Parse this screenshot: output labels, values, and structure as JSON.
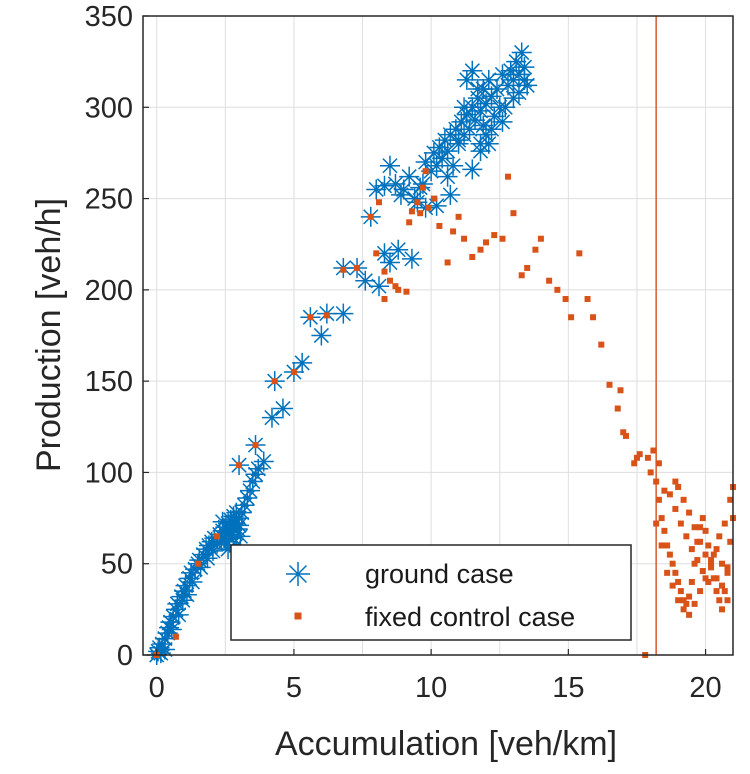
{
  "chart_data": {
    "type": "scatter",
    "title": "",
    "xlabel": "Accumulation [veh/km]",
    "ylabel": "Production [veh/h]",
    "xlim": [
      -0.5,
      21
    ],
    "ylim": [
      0,
      350
    ],
    "xticks": [
      0,
      5,
      10,
      15,
      20
    ],
    "yticks": [
      0,
      50,
      100,
      150,
      200,
      250,
      300,
      350
    ],
    "grid": true,
    "legend_position": "bottom-right",
    "reference_line": {
      "x": 18.2,
      "color": "#d9653b"
    },
    "series": [
      {
        "name": "ground case",
        "marker": "asterisk",
        "color": "#0072bd",
        "points": [
          [
            0.0,
            0
          ],
          [
            0.05,
            2
          ],
          [
            0.1,
            4
          ],
          [
            0.15,
            1
          ],
          [
            0.2,
            6
          ],
          [
            0.3,
            9
          ],
          [
            0.3,
            3
          ],
          [
            0.4,
            12
          ],
          [
            0.45,
            15
          ],
          [
            0.5,
            18
          ],
          [
            0.55,
            14
          ],
          [
            0.6,
            21
          ],
          [
            0.7,
            25
          ],
          [
            0.75,
            28
          ],
          [
            0.8,
            22
          ],
          [
            0.9,
            32
          ],
          [
            0.95,
            30
          ],
          [
            1.0,
            35
          ],
          [
            1.05,
            38
          ],
          [
            1.1,
            33
          ],
          [
            1.2,
            42
          ],
          [
            1.25,
            45
          ],
          [
            1.3,
            40
          ],
          [
            1.4,
            47
          ],
          [
            1.5,
            50
          ],
          [
            1.55,
            52
          ],
          [
            1.6,
            48
          ],
          [
            1.7,
            55
          ],
          [
            1.8,
            58
          ],
          [
            1.85,
            53
          ],
          [
            1.9,
            60
          ],
          [
            2.0,
            62
          ],
          [
            2.05,
            57
          ],
          [
            2.1,
            64
          ],
          [
            2.2,
            61
          ],
          [
            2.3,
            66
          ],
          [
            2.35,
            63
          ],
          [
            2.4,
            68
          ],
          [
            2.45,
            64
          ],
          [
            2.5,
            70
          ],
          [
            2.55,
            66
          ],
          [
            2.6,
            72
          ],
          [
            2.65,
            68
          ],
          [
            2.7,
            74
          ],
          [
            2.75,
            70
          ],
          [
            2.8,
            76
          ],
          [
            2.85,
            72
          ],
          [
            2.9,
            78
          ],
          [
            2.95,
            69
          ],
          [
            3.0,
            71
          ],
          [
            3.05,
            65
          ],
          [
            2.5,
            62
          ],
          [
            2.6,
            58
          ],
          [
            2.7,
            67
          ],
          [
            2.8,
            64
          ],
          [
            2.9,
            60
          ],
          [
            3.0,
            75
          ],
          [
            2.4,
            73
          ],
          [
            3.1,
            78
          ],
          [
            3.2,
            82
          ],
          [
            3.3,
            86
          ],
          [
            3.4,
            90
          ],
          [
            3.5,
            95
          ],
          [
            3.6,
            99
          ],
          [
            3.7,
            102
          ],
          [
            3.9,
            106
          ],
          [
            3.6,
            115
          ],
          [
            3.0,
            104
          ],
          [
            4.2,
            130
          ],
          [
            4.3,
            150
          ],
          [
            4.6,
            135
          ],
          [
            5.0,
            155
          ],
          [
            5.3,
            160
          ],
          [
            5.6,
            185
          ],
          [
            6.0,
            175
          ],
          [
            6.2,
            187
          ],
          [
            6.8,
            187
          ],
          [
            6.8,
            212
          ],
          [
            7.3,
            212
          ],
          [
            7.6,
            205
          ],
          [
            7.8,
            240
          ],
          [
            8.1,
            202
          ],
          [
            8.3,
            220
          ],
          [
            8.5,
            215
          ],
          [
            8.0,
            255
          ],
          [
            8.3,
            257
          ],
          [
            8.5,
            268
          ],
          [
            8.7,
            258
          ],
          [
            8.8,
            222
          ],
          [
            8.9,
            252
          ],
          [
            9.0,
            255
          ],
          [
            9.2,
            262
          ],
          [
            9.3,
            217
          ],
          [
            9.4,
            250
          ],
          [
            9.6,
            256
          ],
          [
            9.7,
            258
          ],
          [
            9.8,
            270
          ],
          [
            10.0,
            265
          ],
          [
            10.1,
            275
          ],
          [
            10.2,
            268
          ],
          [
            10.3,
            278
          ],
          [
            10.4,
            272
          ],
          [
            10.5,
            282
          ],
          [
            10.6,
            276
          ],
          [
            10.7,
            285
          ],
          [
            10.8,
            268
          ],
          [
            10.9,
            288
          ],
          [
            11.0,
            280
          ],
          [
            11.1,
            292
          ],
          [
            11.2,
            285
          ],
          [
            11.3,
            296
          ],
          [
            11.4,
            288
          ],
          [
            11.5,
            300
          ],
          [
            11.6,
            293
          ],
          [
            11.7,
            305
          ],
          [
            11.8,
            298
          ],
          [
            11.9,
            310
          ],
          [
            12.0,
            302
          ],
          [
            12.1,
            315
          ],
          [
            12.2,
            306
          ],
          [
            11.3,
            315
          ],
          [
            11.5,
            320
          ],
          [
            11.7,
            310
          ],
          [
            11.9,
            290
          ],
          [
            12.0,
            285
          ],
          [
            12.1,
            280
          ],
          [
            12.3,
            295
          ],
          [
            12.4,
            310
          ],
          [
            12.5,
            300
          ],
          [
            12.6,
            318
          ],
          [
            12.8,
            312
          ],
          [
            12.9,
            320
          ],
          [
            13.0,
            315
          ],
          [
            13.1,
            325
          ],
          [
            13.2,
            318
          ],
          [
            13.3,
            330
          ],
          [
            13.4,
            322
          ],
          [
            13.5,
            312
          ],
          [
            13.2,
            308
          ],
          [
            13.0,
            305
          ],
          [
            12.6,
            292
          ],
          [
            12.2,
            288
          ],
          [
            11.8,
            276
          ],
          [
            11.5,
            266
          ],
          [
            11.0,
            282
          ],
          [
            10.6,
            262
          ],
          [
            10.2,
            246
          ],
          [
            9.8,
            245
          ],
          [
            9.5,
            248
          ],
          [
            10.7,
            252
          ],
          [
            11.2,
            300
          ],
          [
            11.8,
            280
          ],
          [
            12.7,
            300
          ],
          [
            13.4,
            315
          ]
        ]
      },
      {
        "name": "fixed control case",
        "marker": "square",
        "color": "#d95319",
        "points": [
          [
            0.0,
            0
          ],
          [
            0.7,
            10
          ],
          [
            1.5,
            50
          ],
          [
            2.2,
            65
          ],
          [
            3.0,
            104
          ],
          [
            3.6,
            115
          ],
          [
            4.3,
            150
          ],
          [
            5.0,
            155
          ],
          [
            5.6,
            185
          ],
          [
            6.2,
            186
          ],
          [
            6.8,
            211
          ],
          [
            7.3,
            212
          ],
          [
            7.8,
            240
          ],
          [
            8.0,
            220
          ],
          [
            8.1,
            248
          ],
          [
            8.3,
            210
          ],
          [
            8.5,
            205
          ],
          [
            8.7,
            202
          ],
          [
            8.3,
            195
          ],
          [
            8.8,
            200
          ],
          [
            9.1,
            199
          ],
          [
            9.3,
            243
          ],
          [
            9.5,
            248
          ],
          [
            9.7,
            256
          ],
          [
            9.8,
            265
          ],
          [
            9.2,
            237
          ],
          [
            9.6,
            242
          ],
          [
            9.9,
            245
          ],
          [
            10.1,
            250
          ],
          [
            10.3,
            235
          ],
          [
            10.6,
            215
          ],
          [
            10.8,
            232
          ],
          [
            11.0,
            240
          ],
          [
            11.2,
            228
          ],
          [
            11.5,
            218
          ],
          [
            11.8,
            222
          ],
          [
            12.0,
            226
          ],
          [
            12.3,
            230
          ],
          [
            12.6,
            228
          ],
          [
            12.8,
            262
          ],
          [
            13.0,
            242
          ],
          [
            13.3,
            208
          ],
          [
            13.5,
            212
          ],
          [
            13.8,
            222
          ],
          [
            14.0,
            228
          ],
          [
            14.3,
            205
          ],
          [
            14.6,
            200
          ],
          [
            14.9,
            195
          ],
          [
            15.1,
            185
          ],
          [
            15.4,
            220
          ],
          [
            15.7,
            195
          ],
          [
            15.9,
            185
          ],
          [
            16.2,
            170
          ],
          [
            16.5,
            148
          ],
          [
            16.8,
            135
          ],
          [
            17.1,
            120
          ],
          [
            17.4,
            105
          ],
          [
            17.6,
            110
          ],
          [
            17.9,
            108
          ],
          [
            18.1,
            112
          ],
          [
            18.0,
            100
          ],
          [
            18.2,
            95
          ],
          [
            18.3,
            85
          ],
          [
            18.4,
            75
          ],
          [
            18.5,
            68
          ],
          [
            18.6,
            60
          ],
          [
            18.7,
            55
          ],
          [
            18.8,
            50
          ],
          [
            18.9,
            45
          ],
          [
            19.0,
            40
          ],
          [
            19.1,
            35
          ],
          [
            19.2,
            30
          ],
          [
            19.3,
            28
          ],
          [
            19.4,
            32
          ],
          [
            19.5,
            40
          ],
          [
            19.6,
            50
          ],
          [
            19.7,
            62
          ],
          [
            19.8,
            70
          ],
          [
            19.9,
            75
          ],
          [
            20.0,
            68
          ],
          [
            20.1,
            60
          ],
          [
            20.2,
            50
          ],
          [
            20.3,
            42
          ],
          [
            20.4,
            35
          ],
          [
            20.5,
            30
          ],
          [
            20.6,
            25
          ],
          [
            20.7,
            35
          ],
          [
            20.8,
            48
          ],
          [
            20.9,
            62
          ],
          [
            21.0,
            75
          ],
          [
            18.3,
            105
          ],
          [
            18.5,
            90
          ],
          [
            18.7,
            88
          ],
          [
            18.9,
            80
          ],
          [
            19.1,
            72
          ],
          [
            19.3,
            65
          ],
          [
            19.5,
            58
          ],
          [
            19.7,
            52
          ],
          [
            19.9,
            46
          ],
          [
            20.1,
            40
          ],
          [
            20.3,
            55
          ],
          [
            20.5,
            65
          ],
          [
            20.7,
            72
          ],
          [
            20.9,
            85
          ],
          [
            21.0,
            92
          ],
          [
            19.0,
            92
          ],
          [
            19.2,
            85
          ],
          [
            19.4,
            78
          ],
          [
            19.6,
            70
          ],
          [
            19.8,
            62
          ],
          [
            20.0,
            55
          ],
          [
            20.2,
            48
          ],
          [
            20.4,
            42
          ],
          [
            20.6,
            38
          ],
          [
            20.8,
            30
          ],
          [
            18.4,
            60
          ],
          [
            18.6,
            45
          ],
          [
            18.8,
            38
          ],
          [
            19.0,
            30
          ],
          [
            19.2,
            25
          ],
          [
            19.4,
            22
          ],
          [
            19.6,
            28
          ],
          [
            19.8,
            35
          ],
          [
            20.0,
            42
          ],
          [
            20.2,
            52
          ],
          [
            20.4,
            58
          ],
          [
            20.6,
            50
          ],
          [
            20.8,
            45
          ],
          [
            18.2,
            72
          ],
          [
            18.9,
            95
          ],
          [
            17.8,
            0
          ],
          [
            17.0,
            122
          ],
          [
            17.5,
            108
          ],
          [
            16.9,
            145
          ]
        ]
      }
    ]
  }
}
